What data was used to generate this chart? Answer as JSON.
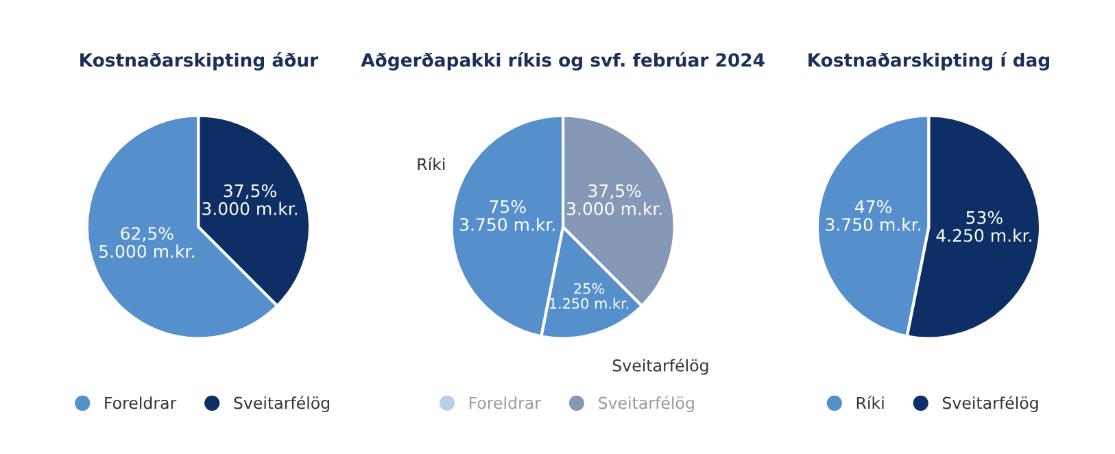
{
  "chart_data": [
    {
      "type": "pie",
      "title": "Kostnaðarskipting áður",
      "categories": [
        "Foreldrar",
        "Sveitarfélög"
      ],
      "values": [
        5000,
        3000
      ],
      "colors": [
        "#5590cc",
        "#0d2f66"
      ],
      "value_labels": [
        "62,5%\n5.000 m.kr.",
        "37,5%\n3.000 m.kr."
      ],
      "legend": "bottom"
    },
    {
      "type": "pie",
      "title": "Aðgerðapakki ríkis og svf. febrúar 2024",
      "categories": [
        "Foreldrar",
        null,
        null,
        "Sveitarfélög"
      ],
      "values": [
        null,
        3750,
        1250,
        3000
      ],
      "colors": [
        "#b7cfe8",
        "#5590cc",
        "#5590cc",
        "#8598b5"
      ],
      "value_labels": [
        null,
        "75%\n3.750 m.kr.",
        "25%\n1.250 m.kr.",
        "37,5%\n3.000 m.kr."
      ],
      "annotations": [
        "Ríki",
        "Sveitarfélög"
      ],
      "legend": "bottom"
    },
    {
      "type": "pie",
      "title": "Kostnaðarskipting í dag",
      "categories": [
        "Ríki",
        "Sveitarfélög"
      ],
      "values": [
        3750,
        4250
      ],
      "colors": [
        "#5590cc",
        "#0d2f66"
      ],
      "value_labels": [
        "47%\n3.750 m.kr.",
        "53%\n4.250 m.kr."
      ],
      "legend": "bottom"
    }
  ]
}
